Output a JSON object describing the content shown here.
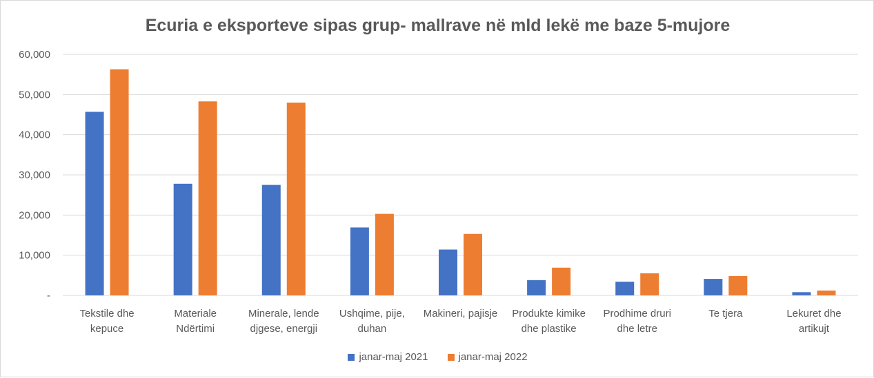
{
  "chart_data": {
    "type": "bar",
    "title": "Ecuria e eksporteve sipas grup- mallrave në mld lekë me baze 5-mujore",
    "categories": [
      [
        "Tekstile dhe",
        "kepuce"
      ],
      [
        "Materiale",
        "Ndërtimi"
      ],
      [
        "Minerale, lende",
        "djgese, energji"
      ],
      [
        "Ushqime, pije,",
        "duhan"
      ],
      [
        "Makineri, pajisje"
      ],
      [
        "Produkte kimike",
        "dhe plastike"
      ],
      [
        "Prodhime druri",
        "dhe letre"
      ],
      [
        "Te tjera"
      ],
      [
        "Lekuret dhe",
        "artikujt"
      ]
    ],
    "series": [
      {
        "name": "janar-maj 2021",
        "color": "#4472c4",
        "values": [
          45700,
          27800,
          27500,
          16900,
          11400,
          3800,
          3400,
          4100,
          800
        ]
      },
      {
        "name": "janar-maj 2022",
        "color": "#ed7d31",
        "values": [
          56300,
          48300,
          48000,
          20300,
          15300,
          6900,
          5500,
          4800,
          1200
        ]
      }
    ],
    "ylim": [
      0,
      60000
    ],
    "yticks": [
      0,
      10000,
      20000,
      30000,
      40000,
      50000,
      60000
    ],
    "ytick_labels": [
      "-",
      "10,000",
      "20,000",
      "30,000",
      "40,000",
      "50,000",
      "60,000"
    ],
    "grid": true,
    "legend_position": "bottom"
  }
}
